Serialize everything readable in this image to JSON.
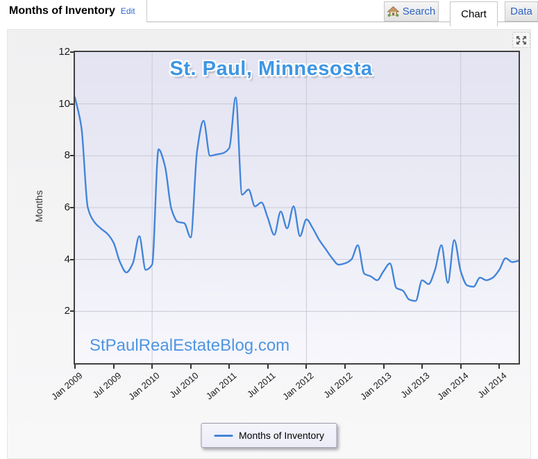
{
  "header": {
    "title": "Months of Inventory",
    "edit_label": "Edit",
    "tabs": [
      {
        "label": "Search",
        "icon": "home-icon",
        "active": false
      },
      {
        "label": "Chart",
        "active": true
      },
      {
        "label": "Data",
        "active": false
      }
    ]
  },
  "expand_button": {
    "icon": "expand-arrows-icon"
  },
  "chart_data": {
    "type": "line",
    "title": "St. Paul, Minnesosta",
    "ylabel": "Months",
    "watermark": "StPaulRealEstateBlog.com",
    "frequency": "monthly",
    "x_start": "Jan 2009",
    "x_end": "Oct 2014",
    "x_tick_labels": [
      "Jan 2009",
      "Jul 2009",
      "Jan 2010",
      "Jul 2010",
      "Jan 2011",
      "Jul 2011",
      "Jan 2012",
      "Jul 2012",
      "Jan 2013",
      "Jul 2013",
      "Jan 2014",
      "Jul 2014"
    ],
    "x_gridline_month_indices": [
      12,
      36,
      60
    ],
    "y_ticks": [
      2,
      4,
      6,
      8,
      10,
      12
    ],
    "ylim": [
      0,
      12
    ],
    "grid": true,
    "legend_position": "bottom",
    "series": [
      {
        "name": "Months of Inventory",
        "color": "#4285d9",
        "values": [
          10.25,
          9.1,
          6.0,
          5.45,
          5.2,
          5.0,
          4.65,
          3.9,
          3.5,
          3.85,
          4.9,
          3.6,
          3.8,
          8.25,
          7.6,
          5.95,
          5.45,
          5.4,
          4.85,
          8.2,
          9.35,
          8.0,
          8.05,
          8.1,
          8.3,
          10.25,
          6.5,
          6.7,
          6.05,
          6.2,
          5.6,
          4.95,
          5.85,
          5.2,
          6.05,
          4.9,
          5.55,
          5.2,
          4.75,
          4.4,
          4.05,
          3.8,
          3.85,
          4.0,
          4.55,
          3.45,
          3.35,
          3.2,
          3.55,
          3.85,
          2.9,
          2.8,
          2.45,
          2.4,
          3.2,
          3.05,
          3.6,
          4.55,
          3.1,
          4.75,
          3.55,
          3.0,
          2.95,
          3.3,
          3.2,
          3.3,
          3.6,
          4.05,
          3.9,
          3.95
        ]
      }
    ],
    "colors": {
      "gridline": "#c9c9d5",
      "plot_border": "#404040",
      "title_color": "#3e96e4",
      "watermark_color": "#4f95e1"
    }
  }
}
